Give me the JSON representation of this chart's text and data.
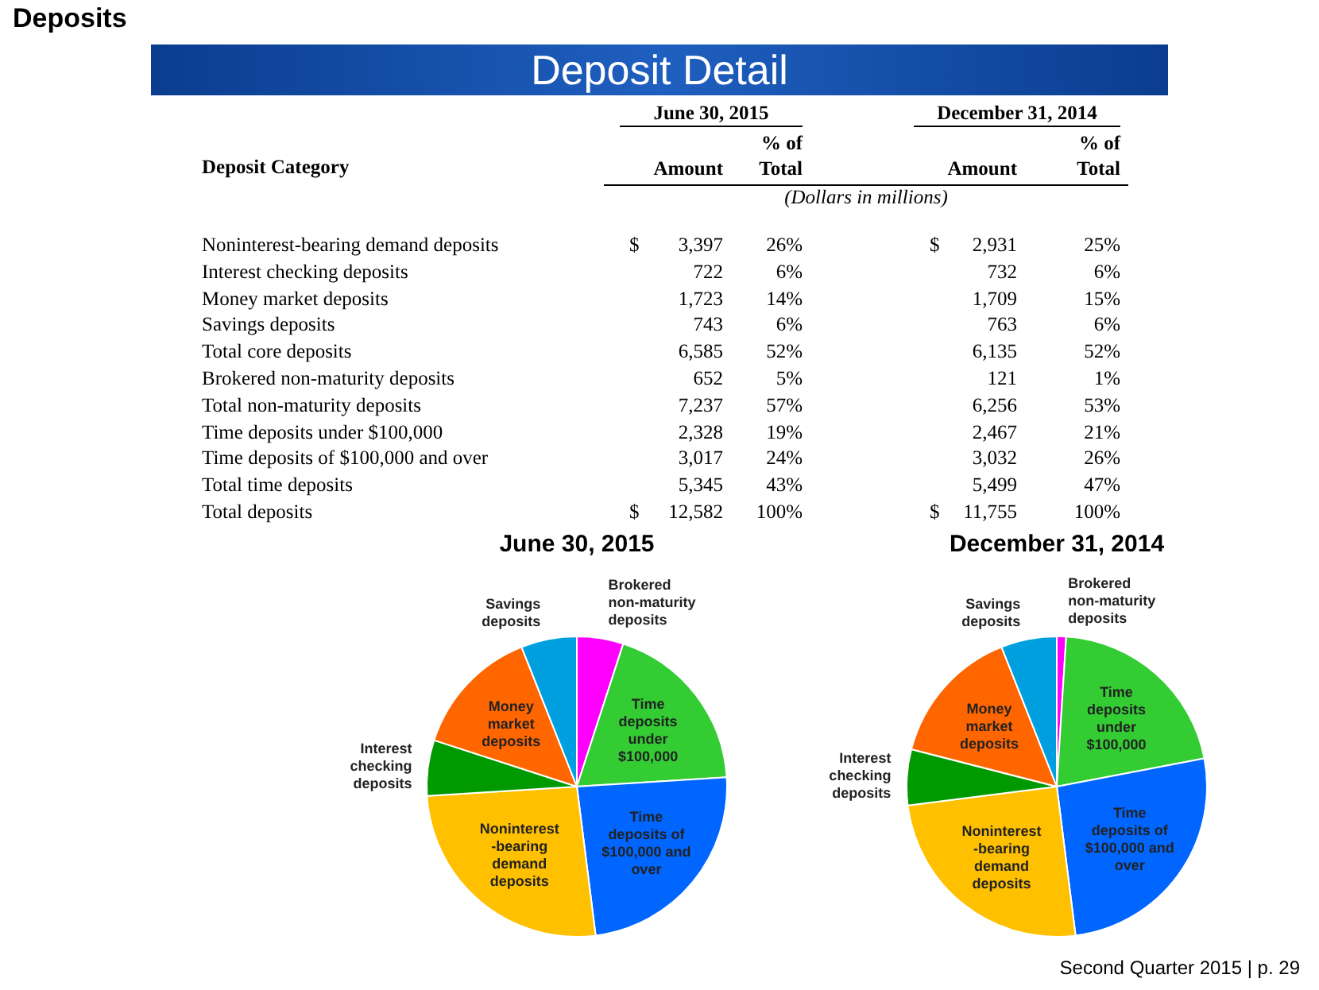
{
  "chart_data": [
    {
      "type": "other",
      "title": "Deposit Detail",
      "subtitle": "Deposits",
      "ylabel": "Deposit Category",
      "categories": [
        "Amount",
        "% of Total",
        "Amount",
        "% of Total"
      ],
      "y_categories": [
        "Noninterest-bearing demand deposits",
        "Interest checking deposits",
        "Money market deposits",
        "Savings deposits",
        "Total core deposits",
        "Brokered non-maturity deposits",
        "Total non-maturity deposits",
        "Time deposits under $100,000",
        "Time deposits of $100,000 and over",
        "Total time deposits",
        "Total deposits"
      ],
      "cell_labels": [
        [
          "$ 3,397",
          "26%",
          "$ 2,931",
          "25%"
        ],
        [
          "722",
          "6%",
          "732",
          "6%"
        ],
        [
          "1,723",
          "14%",
          "1,709",
          "15%"
        ],
        [
          "743",
          "6%",
          "763",
          "6%"
        ],
        [
          "6,585",
          "52%",
          "6,135",
          "52%"
        ],
        [
          "652",
          "5%",
          "121",
          "1%"
        ],
        [
          "7,237",
          "57%",
          "6,256",
          "53%"
        ],
        [
          "2,328",
          "19%",
          "2,467",
          "21%"
        ],
        [
          "3,017",
          "24%",
          "3,032",
          "26%"
        ],
        [
          "5,345",
          "43%",
          "5,499",
          "47%"
        ],
        [
          "$ 12,582",
          "100%",
          "$ 11,755",
          "100%"
        ]
      ],
      "annotations": [
        "June 30, 2015",
        "December 31, 2014",
        "(Dollars in millions)",
        "Second Quarter 2015 | p. 29"
      ]
    },
    {
      "type": "pie",
      "title": "June 30, 2015",
      "categories": [
        "Brokered non-maturity deposits",
        "Time deposits under $100,000",
        "Time deposits of $100,000 and over",
        "Noninterest -bearing demand deposits",
        "Interest checking deposits",
        "Money market deposits",
        "Savings deposits"
      ],
      "values": [
        5,
        19,
        24,
        26,
        6,
        14,
        6
      ],
      "colors": [
        "#ff00ff",
        "#33cc33",
        "#0066ff",
        "#ffc000",
        "#009900",
        "#ff6600",
        "#00a0e0"
      ]
    },
    {
      "type": "pie",
      "title": "December 31, 2014",
      "categories": [
        "Brokered non-maturity deposits",
        "Time deposits under $100,000",
        "Time deposits of $100,000 and over",
        "Noninterest -bearing demand deposits",
        "Interest checking deposits",
        "Money market deposits",
        "Savings deposits"
      ],
      "values": [
        1,
        21,
        26,
        25,
        6,
        15,
        6
      ],
      "colors": [
        "#ff00ff",
        "#33cc33",
        "#0066ff",
        "#ffc000",
        "#009900",
        "#ff6600",
        "#00a0e0"
      ]
    }
  ]
}
